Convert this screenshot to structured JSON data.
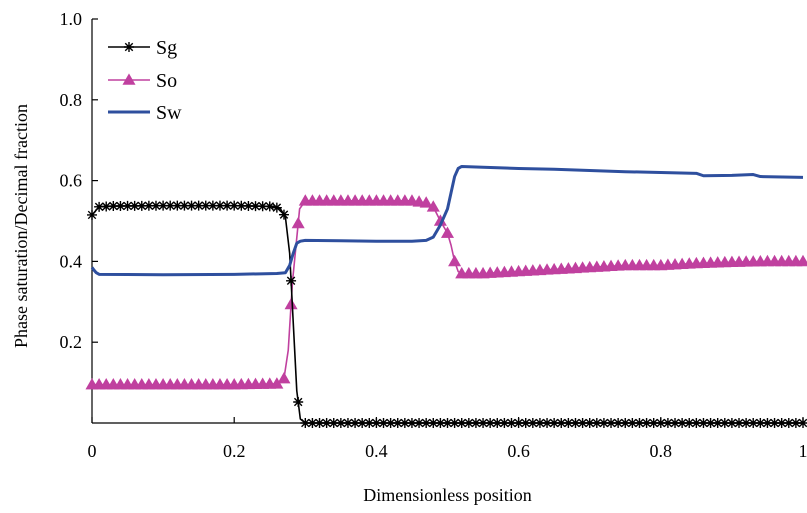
{
  "chart_data": {
    "type": "line",
    "title": "",
    "xlabel": "Dimensionless position",
    "ylabel": "Phase saturation/Decimal fraction",
    "xlim": [
      0,
      1
    ],
    "ylim": [
      0,
      1
    ],
    "x_ticks": [
      0,
      0.2,
      0.4,
      0.6,
      0.8,
      1
    ],
    "x_tick_labels": [
      "0",
      "0.2",
      "0.4",
      "0.6",
      "0.8",
      "1"
    ],
    "y_ticks": [
      0.2,
      0.4,
      0.6,
      0.8,
      1.0
    ],
    "y_tick_labels": [
      "0.2",
      "0.4",
      "0.6",
      "0.8",
      "1.0"
    ],
    "grid": false,
    "legend_position": "top-left",
    "series": [
      {
        "name": "Sg",
        "color": "#000000",
        "marker": "asterisk",
        "x": [
          0,
          0.005,
          0.01,
          0.03,
          0.1,
          0.2,
          0.255,
          0.265,
          0.272,
          0.278,
          0.283,
          0.288,
          0.293,
          0.3,
          0.4,
          0.5,
          0.6,
          0.7,
          0.8,
          0.9,
          1.0
        ],
        "y": [
          0.515,
          0.525,
          0.535,
          0.537,
          0.538,
          0.538,
          0.536,
          0.53,
          0.51,
          0.42,
          0.25,
          0.08,
          0.01,
          0.0,
          0.0,
          0.0,
          0.0,
          0.0,
          0.0,
          0.0,
          0.0
        ]
      },
      {
        "name": "So",
        "color": "#c0409f",
        "marker": "triangle",
        "x": [
          0,
          0.05,
          0.1,
          0.2,
          0.26,
          0.27,
          0.276,
          0.282,
          0.287,
          0.292,
          0.3,
          0.35,
          0.4,
          0.45,
          0.47,
          0.48,
          0.49,
          0.5,
          0.505,
          0.51,
          0.515,
          0.52,
          0.55,
          0.6,
          0.65,
          0.7,
          0.75,
          0.8,
          0.85,
          0.9,
          0.95,
          1.0
        ],
        "y": [
          0.095,
          0.095,
          0.095,
          0.095,
          0.097,
          0.11,
          0.18,
          0.35,
          0.44,
          0.53,
          0.55,
          0.55,
          0.55,
          0.55,
          0.545,
          0.535,
          0.5,
          0.47,
          0.44,
          0.4,
          0.375,
          0.37,
          0.37,
          0.375,
          0.38,
          0.385,
          0.39,
          0.39,
          0.395,
          0.398,
          0.4,
          0.4
        ]
      },
      {
        "name": "Sw",
        "color": "#2e4f9e",
        "marker": "none",
        "x": [
          0,
          0.003,
          0.006,
          0.01,
          0.1,
          0.2,
          0.26,
          0.272,
          0.278,
          0.283,
          0.288,
          0.293,
          0.3,
          0.35,
          0.4,
          0.45,
          0.47,
          0.48,
          0.49,
          0.5,
          0.505,
          0.51,
          0.515,
          0.52,
          0.55,
          0.6,
          0.65,
          0.7,
          0.75,
          0.8,
          0.85,
          0.86,
          0.9,
          0.93,
          0.94,
          1.0
        ],
        "y": [
          0.385,
          0.378,
          0.372,
          0.368,
          0.367,
          0.368,
          0.37,
          0.372,
          0.39,
          0.42,
          0.445,
          0.45,
          0.452,
          0.451,
          0.45,
          0.45,
          0.452,
          0.46,
          0.49,
          0.53,
          0.57,
          0.61,
          0.63,
          0.635,
          0.633,
          0.63,
          0.628,
          0.625,
          0.622,
          0.62,
          0.618,
          0.612,
          0.613,
          0.615,
          0.61,
          0.608
        ]
      }
    ]
  }
}
